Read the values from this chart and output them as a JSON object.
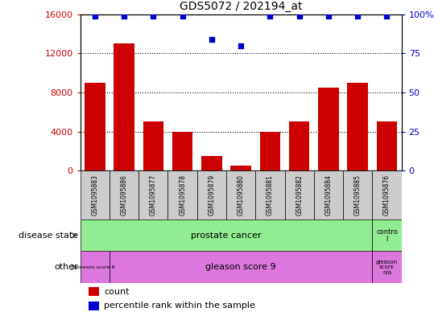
{
  "title": "GDS5072 / 202194_at",
  "samples": [
    "GSM1095883",
    "GSM1095886",
    "GSM1095877",
    "GSM1095878",
    "GSM1095879",
    "GSM1095880",
    "GSM1095881",
    "GSM1095882",
    "GSM1095884",
    "GSM1095885",
    "GSM1095876"
  ],
  "counts": [
    9000,
    13000,
    5000,
    4000,
    1500,
    500,
    4000,
    5000,
    8500,
    9000,
    5000
  ],
  "percentile_ranks": [
    99,
    99,
    99,
    99,
    84,
    80,
    99,
    99,
    99,
    99,
    99
  ],
  "ylim_left": [
    0,
    16000
  ],
  "ylim_right": [
    0,
    100
  ],
  "yticks_left": [
    0,
    4000,
    8000,
    12000,
    16000
  ],
  "yticks_right": [
    0,
    25,
    50,
    75,
    100
  ],
  "bar_color": "#CC0000",
  "dot_color": "#0000CC",
  "green_color": "#90EE90",
  "magenta_color": "#DD77DD",
  "gray_color": "#CCCCCC",
  "white_color": "#FFFFFF"
}
